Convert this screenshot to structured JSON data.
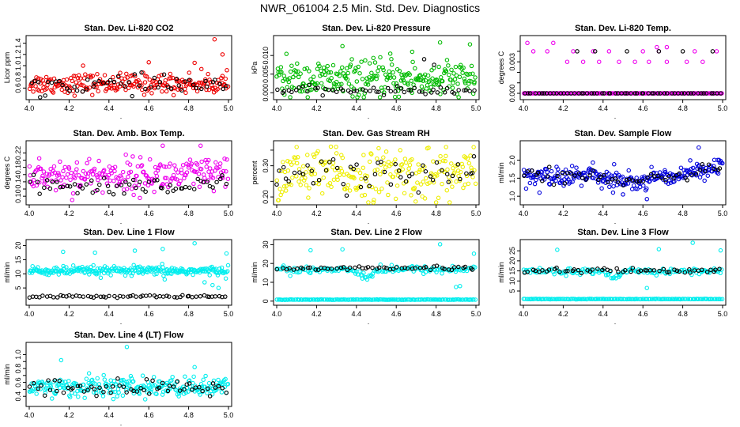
{
  "figure_title": "NWR_061004  2.5 Min. Std. Dev. Diagnostics",
  "chart_data": [
    {
      "type": "scatter",
      "title": "Stan. Dev. Li-820 CO2",
      "ylabel": "Licor ppm",
      "xlim": [
        4.0,
        5.0
      ],
      "ylim": [
        0.45,
        1.48
      ],
      "xticks": [
        4.0,
        4.2,
        4.4,
        4.6,
        4.8,
        5.0
      ],
      "xtick_labels": [
        "4.0",
        "4.2",
        "4.4",
        "4.6",
        "4.8",
        "5.0"
      ],
      "yticks": [
        0.6,
        0.8,
        1.0,
        1.2,
        1.4
      ],
      "ytick_labels": [
        "0.6",
        "0.8",
        "1.0",
        "1.2",
        "1.4"
      ],
      "series": [
        {
          "name": "main",
          "color": "#ee0000",
          "base": 0.68,
          "spread": 0.09,
          "n": 230,
          "outliers": [
            [
              4.27,
              1.0
            ],
            [
              4.6,
              1.06
            ],
            [
              4.83,
              1.05
            ],
            [
              4.93,
              1.47
            ],
            [
              4.97,
              1.2
            ]
          ]
        },
        {
          "name": "black",
          "color": "#000000",
          "base": 0.66,
          "spread": 0.08,
          "n": 55,
          "outliers": []
        }
      ]
    },
    {
      "type": "scatter",
      "title": "Stan. Dev. Li-820 Pressure",
      "ylabel": "kPa",
      "xlim": [
        4.0,
        5.0
      ],
      "ylim": [
        -0.001,
        0.0145
      ],
      "xticks": [
        4.0,
        4.2,
        4.4,
        4.6,
        4.8,
        5.0
      ],
      "xtick_labels": [
        "4.0",
        "4.2",
        "4.4",
        "4.6",
        "4.8",
        "5.0"
      ],
      "yticks": [
        0.0,
        0.005,
        0.01
      ],
      "ytick_labels": [
        "0.000",
        "0.005",
        "0.010"
      ],
      "series": [
        {
          "name": "main",
          "color": "#00bb00",
          "base": 0.0035,
          "spread": 0.0025,
          "n": 260,
          "outliers": [
            [
              4.33,
              0.0125
            ],
            [
              4.57,
              0.0105
            ],
            [
              4.68,
              0.011
            ],
            [
              4.82,
              0.0135
            ],
            [
              4.97,
              0.013
            ]
          ]
        },
        {
          "name": "black",
          "color": "#000000",
          "base": 0.0006,
          "spread": 0.0005,
          "n": 55,
          "outliers": [
            [
              4.74,
              0.009
            ],
            [
              4.79,
              0.0075
            ]
          ]
        }
      ]
    },
    {
      "type": "scatter",
      "title": "Stan. Dev. Li-820 Temp.",
      "ylabel": "degrees C",
      "xlim": [
        4.0,
        5.0
      ],
      "ylim": [
        -0.0003,
        0.0052
      ],
      "xticks": [
        4.0,
        4.2,
        4.4,
        4.6,
        4.8,
        5.0
      ],
      "xtick_labels": [
        "4.0",
        "4.2",
        "4.4",
        "4.6",
        "4.8",
        "5.0"
      ],
      "yticks": [
        0.0,
        0.001,
        0.002,
        0.003,
        0.004
      ],
      "ytick_labels": [
        "0.000",
        "",
        "",
        "0.003",
        ""
      ],
      "series": [
        {
          "name": "main",
          "color": "#ee00ee",
          "base": 0.0,
          "spread": 0.0,
          "n": 170,
          "outliers": [
            [
              4.02,
              0.0048
            ],
            [
              4.15,
              0.0048
            ],
            [
              4.05,
              0.004
            ],
            [
              4.12,
              0.004
            ],
            [
              4.25,
              0.004
            ],
            [
              4.35,
              0.004
            ],
            [
              4.43,
              0.004
            ],
            [
              4.6,
              0.004
            ],
            [
              4.68,
              0.004
            ],
            [
              4.86,
              0.004
            ],
            [
              4.97,
              0.004
            ],
            [
              4.22,
              0.003
            ],
            [
              4.3,
              0.003
            ],
            [
              4.38,
              0.003
            ],
            [
              4.48,
              0.003
            ],
            [
              4.56,
              0.003
            ],
            [
              4.63,
              0.003
            ],
            [
              4.72,
              0.003
            ],
            [
              4.82,
              0.003
            ],
            [
              4.9,
              0.003
            ],
            [
              4.67,
              0.0044
            ],
            [
              4.72,
              0.0044
            ]
          ]
        },
        {
          "name": "black",
          "color": "#000000",
          "base": 0.0,
          "spread": 0.0,
          "n": 60,
          "outliers": [
            [
              4.27,
              0.004
            ],
            [
              4.36,
              0.004
            ],
            [
              4.52,
              0.004
            ],
            [
              4.68,
              0.004
            ],
            [
              4.8,
              0.004
            ],
            [
              4.95,
              0.004
            ]
          ]
        }
      ]
    },
    {
      "type": "scatter",
      "title": "Stan. Dev. Amb. Box Temp.",
      "ylabel": "degrees C",
      "xlim": [
        4.0,
        5.0
      ],
      "ylim": [
        0.085,
        0.245
      ],
      "xticks": [
        4.0,
        4.2,
        4.4,
        4.6,
        4.8,
        5.0
      ],
      "xtick_labels": [
        "4.0",
        "4.2",
        "4.4",
        "4.6",
        "4.8",
        "5.0"
      ],
      "yticks": [
        0.1,
        0.12,
        0.14,
        0.16,
        0.18,
        0.2,
        0.22
      ],
      "ytick_labels": [
        "0.10",
        "",
        "0.14",
        "",
        "0.18",
        "",
        "0.22"
      ],
      "series": [
        {
          "name": "main",
          "color": "#ee00ee",
          "base": 0.158,
          "spread": 0.024,
          "n": 230,
          "outliers": [
            [
              4.67,
              0.24
            ],
            [
              4.86,
              0.24
            ],
            [
              4.05,
              0.205
            ],
            [
              4.9,
              0.2
            ]
          ]
        },
        {
          "name": "black",
          "color": "#000000",
          "base": 0.128,
          "spread": 0.014,
          "n": 60,
          "outliers": []
        }
      ]
    },
    {
      "type": "scatter",
      "title": "Stan. Dev. Gas Stream RH",
      "ylabel": "percent",
      "xlim": [
        4.0,
        5.0
      ],
      "ylim": [
        0.185,
        0.37
      ],
      "xticks": [
        4.0,
        4.2,
        4.4,
        4.6,
        4.8,
        5.0
      ],
      "xtick_labels": [
        "4.0",
        "4.2",
        "4.4",
        "4.6",
        "4.8",
        "5.0"
      ],
      "yticks": [
        0.2,
        0.25,
        0.3,
        0.35
      ],
      "ytick_labels": [
        "0.20",
        "",
        "0.30",
        ""
      ],
      "series": [
        {
          "name": "main",
          "color": "#eeee00",
          "base": 0.27,
          "spread": 0.04,
          "n": 230,
          "outliers": [
            [
              4.1,
              0.36
            ],
            [
              4.85,
              0.36
            ],
            [
              4.3,
              0.34
            ],
            [
              4.62,
              0.35
            ]
          ]
        },
        {
          "name": "black",
          "color": "#000000",
          "base": 0.27,
          "spread": 0.025,
          "n": 50,
          "outliers": [
            [
              4.99,
              0.33
            ],
            [
              4.0,
              0.24
            ]
          ]
        }
      ]
    },
    {
      "type": "scatter",
      "title": "Stan. Dev. Sample Flow",
      "ylabel": "ml/min",
      "xlim": [
        4.0,
        5.0
      ],
      "ylim": [
        0.85,
        2.45
      ],
      "xticks": [
        4.0,
        4.2,
        4.4,
        4.6,
        4.8,
        5.0
      ],
      "xtick_labels": [
        "4.0",
        "4.2",
        "4.4",
        "4.6",
        "4.8",
        "5.0"
      ],
      "yticks": [
        1.0,
        1.5,
        2.0
      ],
      "ytick_labels": [
        "1.0",
        "1.5",
        "2.0"
      ],
      "series": [
        {
          "name": "main",
          "color": "#0000dd",
          "base": 1.55,
          "spread": 0.12,
          "n": 260,
          "trend": "dip",
          "outliers": [
            [
              4.88,
              2.35
            ],
            [
              4.62,
              0.92
            ],
            [
              4.5,
              1.05
            ],
            [
              4.45,
              1.1
            ]
          ]
        },
        {
          "name": "black",
          "color": "#000000",
          "base": 1.55,
          "spread": 0.1,
          "n": 55,
          "trend": "dip",
          "outliers": []
        }
      ]
    },
    {
      "type": "scatter",
      "title": "Stan. Dev. Line 1 Flow",
      "ylabel": "ml/min",
      "xlim": [
        4.0,
        5.0
      ],
      "ylim": [
        0.0,
        21.0
      ],
      "xticks": [
        4.0,
        4.2,
        4.4,
        4.6,
        4.8,
        5.0
      ],
      "xtick_labels": [
        "4.0",
        "4.2",
        "4.4",
        "4.6",
        "4.8",
        "5.0"
      ],
      "yticks": [
        5,
        10,
        15,
        20
      ],
      "ytick_labels": [
        "5",
        "10",
        "15",
        "20"
      ],
      "series": [
        {
          "name": "main",
          "color": "#00eeee",
          "base": 11.0,
          "spread": 0.8,
          "n": 260,
          "outliers": [
            [
              4.17,
              17.8
            ],
            [
              4.33,
              17.5
            ],
            [
              4.53,
              18.2
            ],
            [
              4.67,
              18.8
            ],
            [
              4.83,
              20.8
            ],
            [
              4.99,
              17.2
            ],
            [
              4.68,
              8.0
            ],
            [
              4.92,
              6.0
            ],
            [
              4.95,
              5.0
            ],
            [
              4.88,
              7.0
            ]
          ]
        },
        {
          "name": "black",
          "color": "#000000",
          "base": 2.0,
          "spread": 0.2,
          "n": 60,
          "outliers": []
        }
      ]
    },
    {
      "type": "scatter",
      "title": "Stan. Dev. Line 2 Flow",
      "ylabel": "ml/min",
      "xlim": [
        4.0,
        5.0
      ],
      "ylim": [
        -0.5,
        31.0
      ],
      "xticks": [
        4.0,
        4.2,
        4.4,
        4.6,
        4.8,
        5.0
      ],
      "xtick_labels": [
        "4.0",
        "4.2",
        "4.4",
        "4.6",
        "4.8",
        "5.0"
      ],
      "yticks": [
        0,
        10,
        20,
        30
      ],
      "ytick_labels": [
        "0",
        "10",
        "20",
        "30"
      ],
      "series": [
        {
          "name": "main",
          "color": "#00eeee",
          "base": 0.8,
          "spread": 0.05,
          "n": 150,
          "outliers": [
            [
              4.17,
              27.0
            ],
            [
              4.33,
              27.5
            ],
            [
              4.82,
              30.2
            ],
            [
              4.99,
              25.2
            ],
            [
              4.48,
              13.0
            ],
            [
              4.43,
              12.0
            ],
            [
              4.92,
              8.0
            ],
            [
              4.9,
              7.5
            ]
          ]
        },
        {
          "name": "cyan2",
          "color": "#00eeee",
          "base": 16.8,
          "spread": 1.0,
          "n": 150,
          "dip": true,
          "outliers": []
        },
        {
          "name": "black",
          "color": "#000000",
          "base": 17.5,
          "spread": 0.6,
          "n": 55,
          "outliers": []
        }
      ]
    },
    {
      "type": "scatter",
      "title": "Stan. Dev. Line 3 Flow",
      "ylabel": "ml/min",
      "xlim": [
        4.0,
        5.0
      ],
      "ylim": [
        -0.5,
        29.0
      ],
      "xticks": [
        4.0,
        4.2,
        4.4,
        4.6,
        4.8,
        5.0
      ],
      "xtick_labels": [
        "4.0",
        "4.2",
        "4.4",
        "4.6",
        "4.8",
        "5.0"
      ],
      "yticks": [
        5,
        10,
        15,
        20,
        25
      ],
      "ytick_labels": [
        "5",
        "10",
        "15",
        "20",
        "25"
      ],
      "series": [
        {
          "name": "main",
          "color": "#00eeee",
          "base": 1.0,
          "spread": 0.05,
          "n": 150,
          "outliers": [
            [
              4.17,
              25.5
            ],
            [
              4.68,
              25.8
            ],
            [
              4.99,
              25.2
            ],
            [
              4.85,
              29.0
            ],
            [
              4.62,
              6.5
            ],
            [
              4.48,
              12.0
            ]
          ]
        },
        {
          "name": "cyan2",
          "color": "#00eeee",
          "base": 14.8,
          "spread": 0.8,
          "n": 150,
          "dip": true,
          "outliers": []
        },
        {
          "name": "black",
          "color": "#000000",
          "base": 15.2,
          "spread": 0.6,
          "n": 55,
          "outliers": []
        }
      ]
    },
    {
      "type": "scatter",
      "title": "Stan. Dev. Line 4 (LT) Flow",
      "ylabel": "ml/min",
      "xlim": [
        4.0,
        5.0
      ],
      "ylim": [
        0.3,
        1.13
      ],
      "xticks": [
        4.0,
        4.2,
        4.4,
        4.6,
        4.8,
        5.0
      ],
      "xtick_labels": [
        "4.0",
        "4.2",
        "4.4",
        "4.6",
        "4.8",
        "5.0"
      ],
      "yticks": [
        0.4,
        0.5,
        0.6,
        0.7,
        0.8,
        0.9,
        1.0
      ],
      "ytick_labels": [
        "0.4",
        "",
        "0.6",
        "",
        "0.8",
        "",
        "1.0"
      ],
      "series": [
        {
          "name": "main",
          "color": "#00eeee",
          "base": 0.53,
          "spread": 0.07,
          "n": 250,
          "outliers": [
            [
              4.49,
              1.11
            ],
            [
              4.16,
              0.92
            ],
            [
              4.83,
              0.82
            ],
            [
              4.3,
              0.73
            ]
          ]
        },
        {
          "name": "black",
          "color": "#000000",
          "base": 0.52,
          "spread": 0.06,
          "n": 60,
          "outliers": []
        }
      ]
    }
  ]
}
